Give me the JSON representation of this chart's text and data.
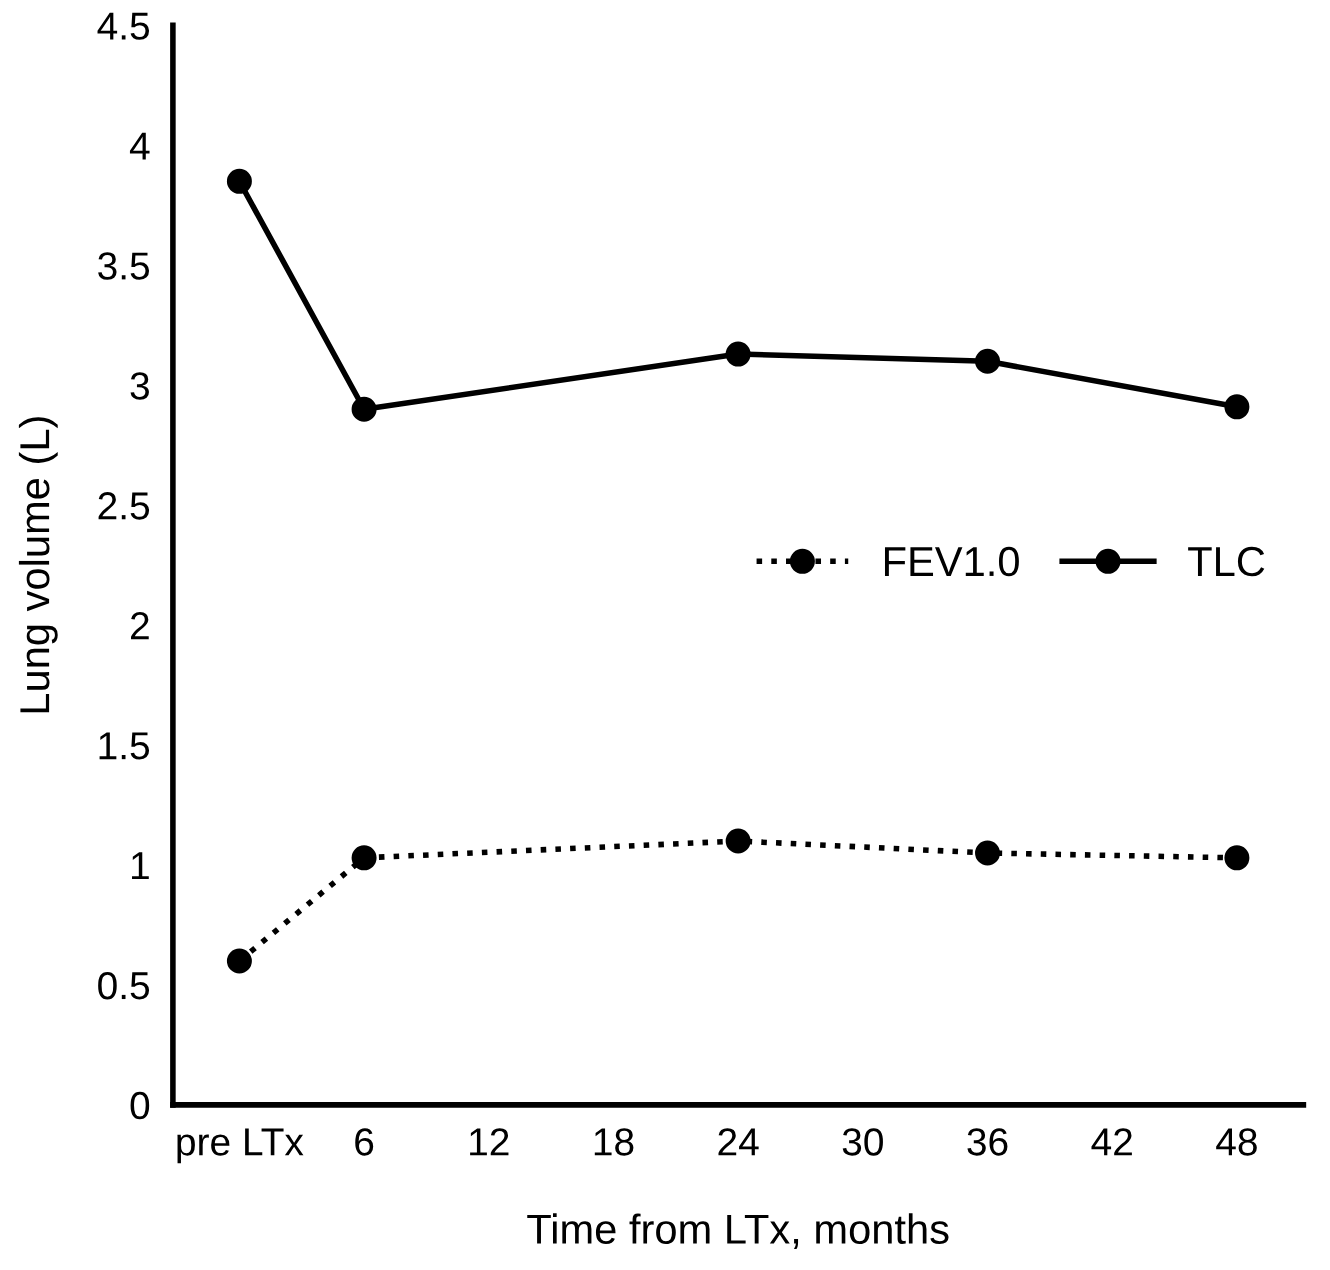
{
  "chart_data": {
    "type": "line",
    "xlabel": "Time from LTx, months",
    "ylabel": "Lung volume (L)",
    "x": [
      0,
      6,
      24,
      36,
      48
    ],
    "series": [
      {
        "name": "FEV1.0",
        "color": "#000000",
        "line_style": "dotted",
        "values": [
          0.6,
          1.03,
          1.1,
          1.05,
          1.03
        ]
      },
      {
        "name": "TLC",
        "color": "#000000",
        "line_style": "solid",
        "values": [
          3.85,
          2.9,
          3.13,
          3.1,
          2.91
        ]
      }
    ],
    "xlim": [
      -3.2,
      51.2
    ],
    "xticks": [
      {
        "value": 0,
        "label": "pre LTx"
      },
      6,
      12,
      18,
      24,
      30,
      36,
      42,
      48
    ],
    "ylim": [
      0,
      4.5
    ],
    "yticks": [
      0,
      0.5,
      1,
      1.5,
      2,
      2.5,
      3,
      3.5,
      4,
      4.5
    ],
    "marker": "circle",
    "grid": false,
    "legend": "right"
  }
}
